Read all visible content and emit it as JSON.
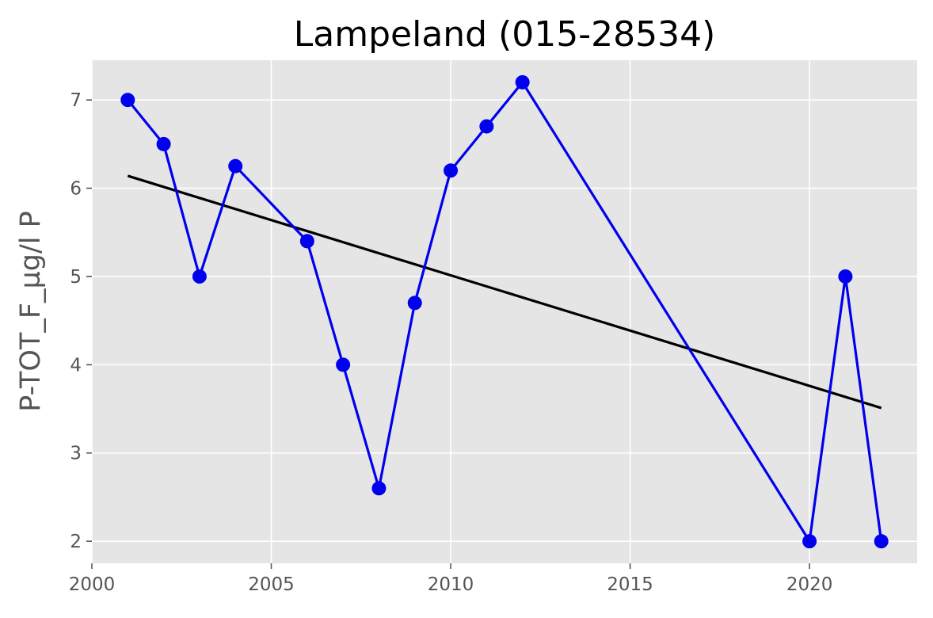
{
  "chart_data": {
    "type": "line",
    "title": "Lampeland (015-28534)",
    "xlabel": "",
    "ylabel": "P-TOT_F_µg/l P",
    "xlim": [
      2000,
      2023
    ],
    "ylim": [
      1.75,
      7.45
    ],
    "x_ticks": [
      "2000",
      "2005",
      "2010",
      "2015",
      "2020"
    ],
    "y_ticks": [
      "2",
      "3",
      "4",
      "5",
      "6",
      "7"
    ],
    "grid": true,
    "legend": "none",
    "series": [
      {
        "x": [
          2001,
          2002,
          2003,
          2004,
          2006,
          2007,
          2008,
          2009,
          2010,
          2011,
          2012,
          2020,
          2021,
          2022
        ],
        "y": [
          7.0,
          6.5,
          5.0,
          6.25,
          5.4,
          4.0,
          2.6,
          4.7,
          6.2,
          6.7,
          7.2,
          2.0,
          5.0,
          2.0
        ],
        "color": "#0000ee",
        "marker": "circle"
      }
    ],
    "trend": {
      "x": [
        2001,
        2022
      ],
      "y": [
        6.14,
        3.51
      ],
      "color": "#000000"
    },
    "colors": {
      "plot_background": "#e5e5e5",
      "grid": "#ffffff",
      "tick_text": "#555555"
    }
  }
}
